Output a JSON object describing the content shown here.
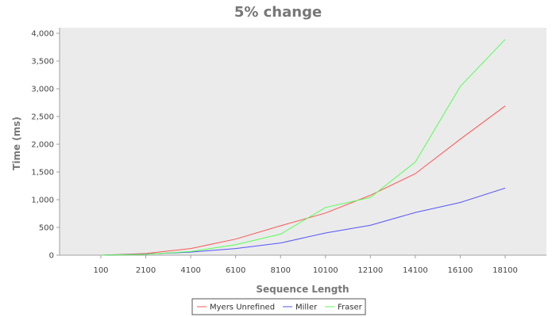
{
  "chart_data": {
    "type": "line",
    "title": "5% change",
    "xlabel": "Sequence Length",
    "ylabel": "Time (ms)",
    "categories": [
      "100",
      "2100",
      "4100",
      "6100",
      "8100",
      "10100",
      "12100",
      "14100",
      "16100",
      "18100"
    ],
    "ylim": [
      0,
      4100
    ],
    "yticks": [
      0,
      500,
      1000,
      1500,
      2000,
      2500,
      3000,
      3500,
      4000
    ],
    "ytick_labels": [
      "0",
      "500",
      "1,000",
      "1,500",
      "2,000",
      "2,500",
      "3,000",
      "3,500",
      "4,000"
    ],
    "grid": false,
    "legend_position": "bottom",
    "series": [
      {
        "name": "Myers Unrefined",
        "color": "#ff5555",
        "values": [
          0,
          30,
          120,
          290,
          530,
          760,
          1080,
          1470,
          2090,
          2690
        ]
      },
      {
        "name": "Miller",
        "color": "#5555ff",
        "values": [
          0,
          20,
          55,
          120,
          220,
          400,
          540,
          770,
          950,
          1210
        ]
      },
      {
        "name": "Fraser",
        "color": "#55ff55",
        "values": [
          0,
          15,
          65,
          190,
          380,
          860,
          1040,
          1680,
          3040,
          3890
        ]
      }
    ]
  },
  "colors": {
    "plot_background": "#ebebeb",
    "axis": "#a0a0a0"
  }
}
